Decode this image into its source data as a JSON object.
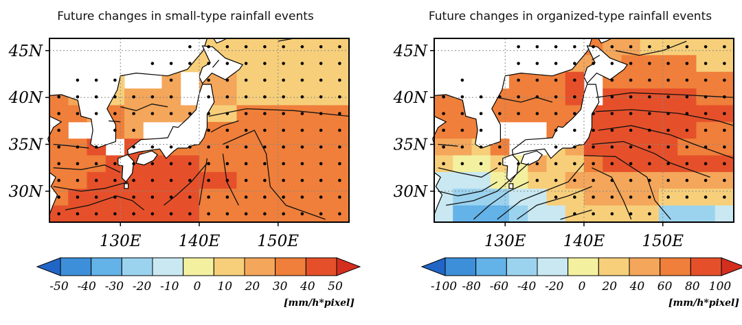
{
  "panels": [
    {
      "title": "Future changes in small-type rainfall events",
      "lat_ticks": [
        "45N",
        "40N",
        "35N",
        "30N"
      ],
      "lon_ticks": [
        "130E",
        "140E",
        "150E"
      ],
      "colorbar": {
        "tick_labels": [
          "-50",
          "-40",
          "-30",
          "-20",
          "-10",
          "0",
          "10",
          "20",
          "30",
          "40",
          "50"
        ],
        "units": "[mm/h*pixel]"
      }
    },
    {
      "title": "Future changes in organized-type rainfall events",
      "lat_ticks": [
        "45N",
        "40N",
        "35N",
        "30N"
      ],
      "lon_ticks": [
        "130E",
        "140E",
        "150E"
      ],
      "colorbar": {
        "tick_labels": [
          "-100",
          "-80",
          "-60",
          "-40",
          "-20",
          "0",
          "20",
          "40",
          "60",
          "80",
          "100"
        ],
        "units": "[mm/h*pixel]"
      }
    }
  ],
  "colors": {
    "scale": [
      "#2166c7",
      "#3d8fd9",
      "#63b2e8",
      "#9bd3ef",
      "#c9e8f2",
      "#f3f0a0",
      "#f7cf7a",
      "#f4a65a",
      "#ef7f3a",
      "#e5502a",
      "#d42e1f"
    ],
    "land": "#ffffff",
    "frame": "#000000"
  }
}
